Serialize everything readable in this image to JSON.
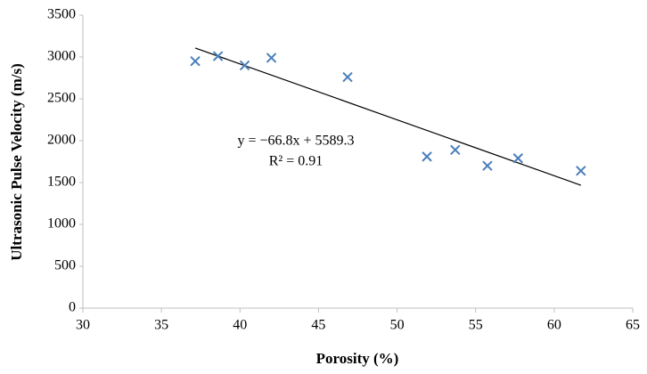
{
  "chart_data": {
    "type": "scatter",
    "x_label": "Porosity (%)",
    "y_label": "Ultrasonic Pulse Velocity (m/s)",
    "x": [
      37.15,
      38.6,
      40.3,
      42.0,
      46.85,
      51.9,
      53.7,
      55.75,
      57.7,
      61.7
    ],
    "values": [
      2950,
      3010,
      2900,
      2990,
      2760,
      1810,
      1890,
      1700,
      1790,
      1640
    ],
    "color": "#4a7ebb",
    "xlim": [
      30,
      65
    ],
    "xticks": [
      30,
      35,
      40,
      45,
      50,
      55,
      60,
      65
    ],
    "ylim": [
      0,
      3500
    ],
    "yticks": [
      0,
      500,
      1000,
      1500,
      2000,
      2500,
      3000,
      3500
    ],
    "grid": false,
    "trendline": {
      "slope": -66.8,
      "intercept": 5589.3,
      "label": "y = −66.8x + 5589.3",
      "r2_label": "R² = 0.91"
    }
  }
}
